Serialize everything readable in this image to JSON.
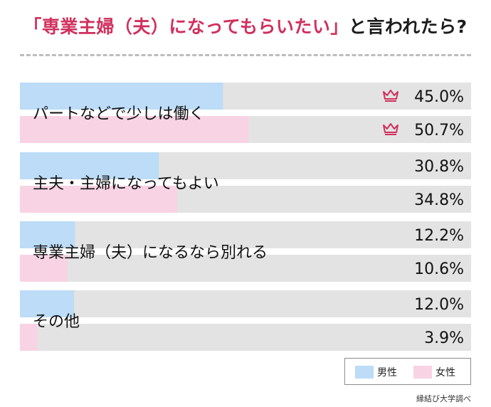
{
  "title": {
    "highlight": "「専業主婦（夫）になってもらいたい」",
    "suffix": "と言われたら?"
  },
  "colors": {
    "male_bar": "#bcdcf7",
    "female_bar": "#f8d3e3",
    "track": "#e3e3e3",
    "accent": "#d0305e",
    "divider": "#bdbdbd"
  },
  "legend": {
    "male": "男性",
    "female": "女性"
  },
  "source": "縁結び大学調べ",
  "crown_icon": "crown-icon",
  "chart_data": {
    "type": "bar",
    "orientation": "horizontal",
    "title": "「専業主婦（夫）になってもらいたい」と言われたら?",
    "categories": [
      "パートなどで少しは働く",
      "主夫・主婦になってもよい",
      "専業主婦（夫）になるなら別れる",
      "その他"
    ],
    "series": [
      {
        "name": "男性",
        "values": [
          45.0,
          30.8,
          12.2,
          12.0
        ],
        "labels": [
          "45.0%",
          "30.8%",
          "12.2%",
          "12.0%"
        ]
      },
      {
        "name": "女性",
        "values": [
          50.7,
          34.8,
          10.6,
          3.9
        ],
        "labels": [
          "50.7%",
          "34.8%",
          "10.6%",
          "3.9%"
        ]
      }
    ],
    "xlim": [
      0,
      100
    ],
    "top_marked": [
      true,
      false,
      false,
      false
    ],
    "legend_position": "bottom-right",
    "grid": false
  }
}
